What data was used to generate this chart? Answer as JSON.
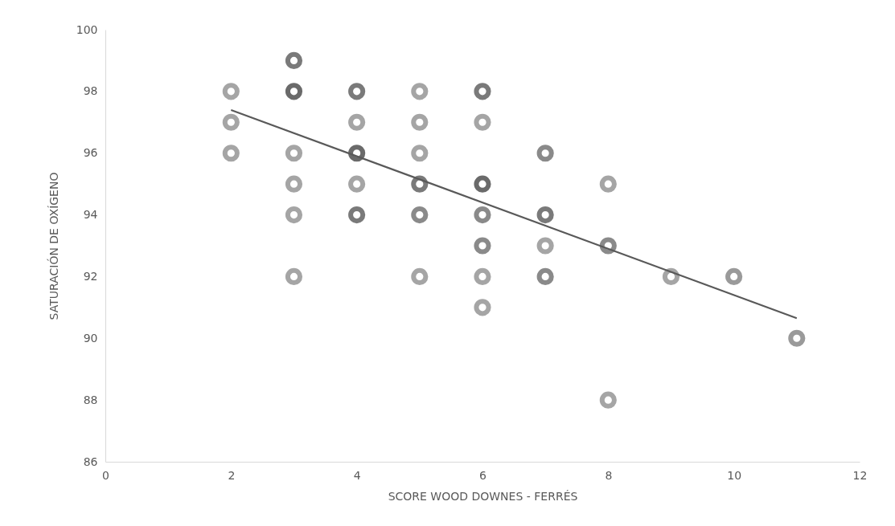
{
  "chart_data": {
    "type": "scatter",
    "xlabel": "SCORE WOOD DOWNES - FERRÉS",
    "ylabel": "SATURACIÓN DE OXÍGENO",
    "xlim": [
      0,
      12
    ],
    "xticks": [
      0,
      2,
      4,
      6,
      8,
      10,
      12
    ],
    "ylim": [
      86,
      100
    ],
    "yticks": [
      86,
      88,
      90,
      92,
      94,
      96,
      98,
      100
    ],
    "grid": false,
    "legend": false,
    "series": [
      {
        "marker": "circle",
        "x": [
          2,
          2,
          2,
          3,
          3,
          3,
          3,
          3,
          3,
          4,
          4,
          4,
          4,
          4,
          5,
          5,
          5,
          5,
          5,
          5,
          6,
          6,
          6,
          6,
          6,
          6,
          6,
          7,
          7,
          7,
          7,
          8,
          8,
          8,
          9,
          10,
          11
        ],
        "values": [
          98,
          97,
          96,
          99,
          98,
          96,
          95,
          94,
          92,
          98,
          97,
          96,
          95,
          94,
          98,
          97,
          96,
          95,
          94,
          92,
          98,
          97,
          95,
          94,
          93,
          92,
          91,
          96,
          94,
          93,
          92,
          95,
          93,
          88,
          92,
          92,
          90
        ],
        "colors": [
          "#a5a5a5",
          "#a5a5a5",
          "#a5a5a5",
          "#7a7a7a",
          "#6a6a6a",
          "#a5a5a5",
          "#a5a5a5",
          "#a5a5a5",
          "#a5a5a5",
          "#7a7a7a",
          "#a5a5a5",
          "#6a6a6a",
          "#a5a5a5",
          "#7a7a7a",
          "#a5a5a5",
          "#a5a5a5",
          "#a5a5a5",
          "#7a7a7a",
          "#8a8a8a",
          "#a5a5a5",
          "#7a7a7a",
          "#a5a5a5",
          "#6a6a6a",
          "#8a8a8a",
          "#8a8a8a",
          "#a5a5a5",
          "#a5a5a5",
          "#8a8a8a",
          "#7a7a7a",
          "#a5a5a5",
          "#8a8a8a",
          "#a5a5a5",
          "#8a8a8a",
          "#a5a5a5",
          "#a5a5a5",
          "#9a9a9a",
          "#9a9a9a"
        ]
      },
      {
        "type": "line",
        "color": "#595959",
        "line_style": "solid",
        "marker": "none",
        "x": [
          2,
          11
        ],
        "values": [
          97.4,
          90.65
        ]
      }
    ]
  }
}
